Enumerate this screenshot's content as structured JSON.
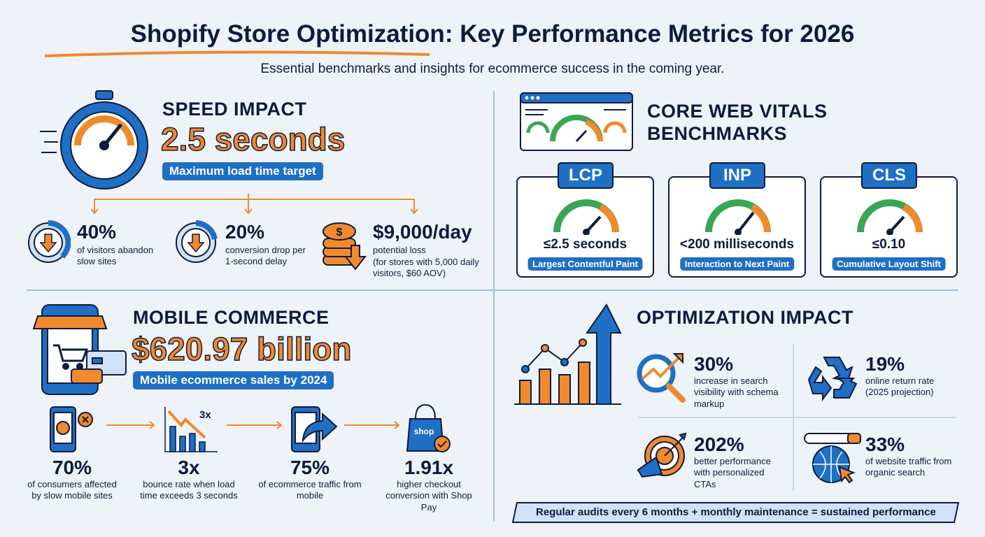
{
  "header": {
    "title": "Shopify Store Optimization: Key Performance Metrics for 2026",
    "subtitle": "Essential benchmarks and insights for ecommerce success in the coming year."
  },
  "colors": {
    "navy": "#0f1b3d",
    "blue": "#1f6fc5",
    "orange": "#f08a2c",
    "green": "#3aa655",
    "background": "#eef3f9"
  },
  "speed": {
    "heading": "SPEED IMPACT",
    "value": "2.5 seconds",
    "pill": "Maximum load time target",
    "icon": "stopwatch-icon",
    "stats": [
      {
        "value": "40%",
        "desc": "of visitors abandon slow sites",
        "icon": "down-arrow-ring-icon"
      },
      {
        "value": "20%",
        "desc": "conversion drop per 1-second delay",
        "icon": "down-arrow-ring-icon"
      },
      {
        "value": "$9,000/day",
        "desc": "potential loss",
        "note": "(for stores with 5,000 daily visitors, $60 AOV)",
        "icon": "coins-down-icon"
      }
    ]
  },
  "vitals": {
    "heading_line1": "CORE WEB VITALS",
    "heading_line2": "BENCHMARKS",
    "icon": "browser-gauges-icon",
    "cards": [
      {
        "label": "LCP",
        "value": "≤2.5 seconds",
        "desc": "Largest Contentful Paint"
      },
      {
        "label": "INP",
        "value": "<200 milliseconds",
        "desc": "Interaction to Next Paint"
      },
      {
        "label": "CLS",
        "value": "≤0.10",
        "desc": "Cumulative Layout Shift"
      }
    ]
  },
  "mobile": {
    "heading": "MOBILE COMMERCE",
    "value": "$620.97 billion",
    "pill": "Mobile ecommerce sales by 2024",
    "icon": "mobile-storefront-icon",
    "stats": [
      {
        "value": "70%",
        "desc": "of consumers affected by slow mobile sites",
        "icon": "angry-phone-icon"
      },
      {
        "value": "3x",
        "desc": "bounce rate when load time exceeds 3 seconds",
        "icon": "declining-chart-icon",
        "icon_label": "3x"
      },
      {
        "value": "75%",
        "desc": "of ecommerce traffic from mobile",
        "icon": "phone-arrow-icon"
      },
      {
        "value": "1.91x",
        "desc": "higher checkout conversion with Shop Pay",
        "icon": "shop-pay-bag-icon",
        "icon_label": "shop"
      }
    ]
  },
  "optimization": {
    "heading": "OPTIMIZATION IMPACT",
    "icon": "growth-chart-icon",
    "stats": [
      {
        "value": "30%",
        "desc": "increase in search visibility with schema markup",
        "icon": "search-trend-icon"
      },
      {
        "value": "19%",
        "desc": "online return rate (2025 projection)",
        "icon": "recycle-icon"
      },
      {
        "value": "202%",
        "desc": "better performance with personalized CTAs",
        "icon": "target-megaphone-icon"
      },
      {
        "value": "33%",
        "desc": "of website traffic from organic search",
        "icon": "globe-search-icon"
      }
    ],
    "banner": "Regular audits every 6 months + monthly maintenance = sustained performance"
  }
}
